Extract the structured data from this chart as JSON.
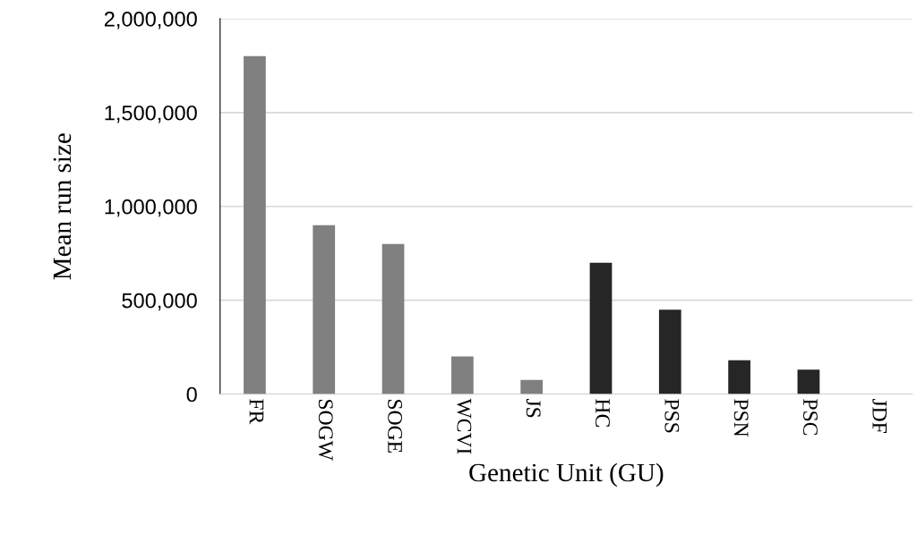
{
  "chart_data": {
    "type": "bar",
    "xlabel": "Genetic Unit (GU)",
    "ylabel": "Mean run size",
    "categories": [
      "FR",
      "SOGW",
      "SOGE",
      "WCVI",
      "JS",
      "HC",
      "PSS",
      "PSN",
      "PSC",
      "JDF"
    ],
    "values": [
      1800000,
      900000,
      800000,
      200000,
      75000,
      700000,
      450000,
      180000,
      130000,
      0
    ],
    "colors": [
      "#808080",
      "#808080",
      "#808080",
      "#808080",
      "#808080",
      "#262626",
      "#262626",
      "#262626",
      "#262626",
      "#262626"
    ],
    "ylim": [
      0,
      2000000
    ],
    "yticks": [
      {
        "value": 0,
        "label": "0"
      },
      {
        "value": 500000,
        "label": "500,000"
      },
      {
        "value": 1000000,
        "label": "1,000,000"
      },
      {
        "value": 1500000,
        "label": "1,500,000"
      },
      {
        "value": 2000000,
        "label": "2,000,000"
      }
    ],
    "grid": "y",
    "legend": false
  }
}
